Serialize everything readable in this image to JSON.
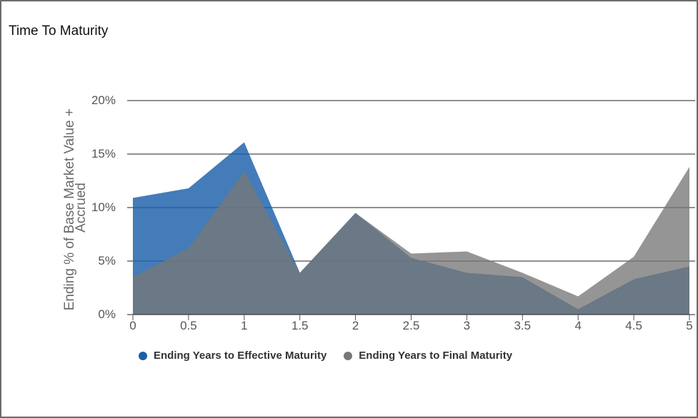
{
  "chart_data": {
    "type": "area",
    "title": "Time To Maturity",
    "ylabel": "Ending % of Base Market Value + Accrued",
    "ylabel_lines": [
      "Ending % of Base Market Value +",
      "Accrued"
    ],
    "xlabel": "",
    "x": [
      0,
      0.5,
      1,
      1.5,
      2,
      2.5,
      3,
      3.5,
      4,
      4.5,
      5
    ],
    "x_tick_labels": [
      "0",
      "0.5",
      "1",
      "1.5",
      "2",
      "2.5",
      "3",
      "3.5",
      "4",
      "4.5",
      "5"
    ],
    "y_tick_labels": [
      "0%",
      "5%",
      "10%",
      "15%",
      "20%"
    ],
    "ylim": [
      0,
      20
    ],
    "grid": true,
    "legend_position": "bottom",
    "series": [
      {
        "name": "Ending Years to Effective Maturity",
        "color": "#1a5fa8",
        "values": [
          10.9,
          11.8,
          16.1,
          3.9,
          9.5,
          5.3,
          3.9,
          3.5,
          0.5,
          3.3,
          4.5
        ]
      },
      {
        "name": "Ending Years to Final Maturity",
        "color": "#777777",
        "values": [
          3.5,
          6.2,
          13.4,
          3.9,
          9.5,
          5.7,
          5.9,
          3.9,
          1.7,
          5.4,
          13.8
        ]
      }
    ]
  }
}
